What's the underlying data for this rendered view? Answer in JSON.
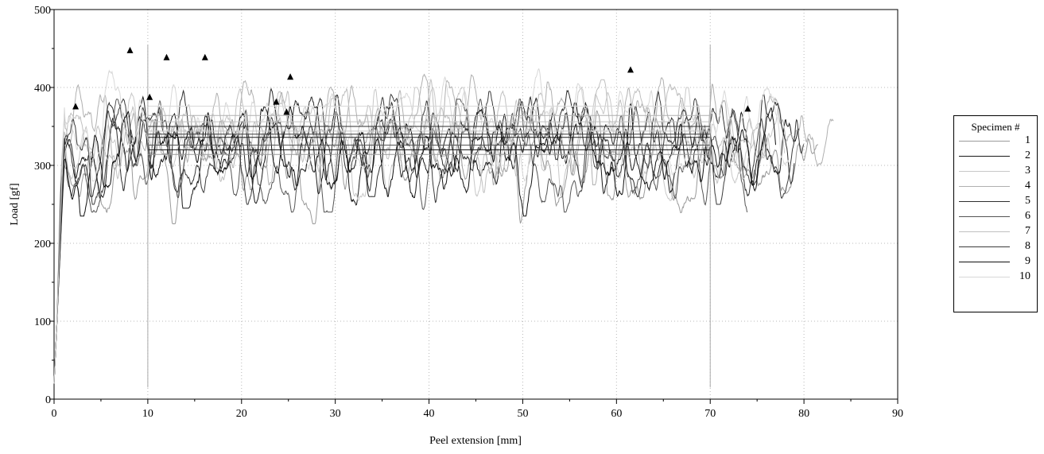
{
  "chart_data": {
    "type": "line",
    "xlabel": "Peel extension [mm]",
    "ylabel": "Load [gf]",
    "xlim": [
      0,
      90
    ],
    "ylim": [
      0,
      500
    ],
    "xticks": [
      "0",
      "10",
      "20",
      "30",
      "40",
      "50",
      "60",
      "70",
      "80",
      "90"
    ],
    "yticks": [
      "0",
      "100",
      "200",
      "300",
      "400",
      "500"
    ],
    "grid": true,
    "legend_title": "Specimen #",
    "legend_position": "right",
    "markers_x": [
      10,
      70
    ],
    "series": [
      {
        "name": "1",
        "color": "#9a9a9a",
        "end": 81.5,
        "seed": 11,
        "base": 300,
        "plateau": [
          10,
          70,
          314
        ],
        "peak": [
          12.0,
          438
        ]
      },
      {
        "name": "2",
        "color": "#1a1a1a",
        "end": 79.5,
        "seed": 23,
        "base": 320,
        "plateau": [
          10,
          70,
          336
        ],
        "peak": [
          2.3,
          375
        ]
      },
      {
        "name": "3",
        "color": "#c8c8c8",
        "end": 78.0,
        "seed": 37,
        "base": 330,
        "plateau": [
          10,
          70,
          344
        ],
        "peak": [
          61.5,
          422
        ]
      },
      {
        "name": "4",
        "color": "#b0b0b0",
        "end": 83.2,
        "seed": 41,
        "base": 350,
        "plateau": [
          10,
          70,
          364
        ],
        "peak": [
          8.1,
          447
        ]
      },
      {
        "name": "5",
        "color": "#2e2e2e",
        "end": 79.0,
        "seed": 53,
        "base": 335,
        "plateau": [
          10,
          70,
          350
        ],
        "peak": [
          25.2,
          413
        ]
      },
      {
        "name": "6",
        "color": "#555555",
        "end": 74.0,
        "seed": 67,
        "base": 315,
        "plateau": [
          10,
          70,
          326
        ],
        "peak": [
          23.7,
          381
        ]
      },
      {
        "name": "7",
        "color": "#c0c0c0",
        "end": 76.5,
        "seed": 71,
        "base": 340,
        "plateau": [
          10,
          70,
          356
        ],
        "peak": [
          16.1,
          438
        ]
      },
      {
        "name": "8",
        "color": "#3b3b3b",
        "end": 80.0,
        "seed": 83,
        "base": 325,
        "plateau": [
          10,
          70,
          340
        ],
        "peak": [
          74.0,
          372
        ]
      },
      {
        "name": "9",
        "color": "#101010",
        "end": 77.0,
        "seed": 97,
        "base": 310,
        "plateau": [
          10,
          70,
          320
        ],
        "peak": [
          24.8,
          368
        ]
      },
      {
        "name": "10",
        "color": "#d8d8d8",
        "end": 78.5,
        "seed": 101,
        "base": 355,
        "plateau": [
          10,
          70,
          376
        ],
        "peak": [
          10.2,
          387
        ]
      }
    ]
  }
}
